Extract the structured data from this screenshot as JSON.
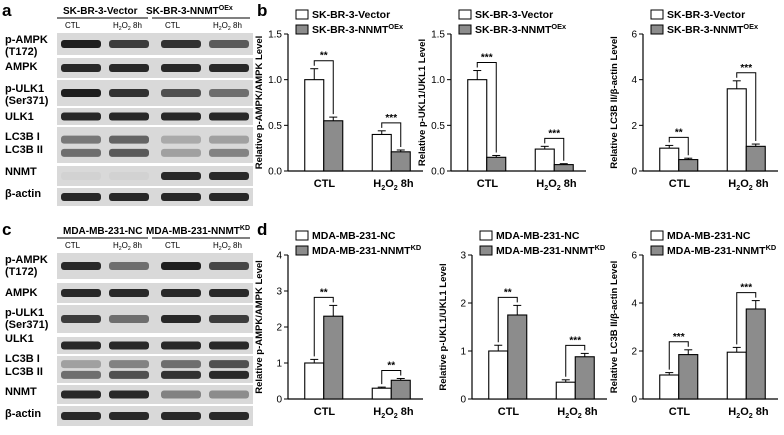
{
  "panels": {
    "a": "a",
    "b": "b",
    "c": "c",
    "d": "d"
  },
  "blots": [
    {
      "id": "a",
      "group_labels": [
        "SK-BR-3-Vector",
        "SK-BR-3-NNMT"
      ],
      "group_sup": [
        "",
        "OEx"
      ],
      "lane_labels": [
        "CTL",
        "H2O2 8h",
        "CTL",
        "H2O2 8h"
      ],
      "rows": [
        "p-AMPK",
        "(T172)",
        "AMPK",
        "p-ULK1",
        "(Ser371)",
        "ULK1",
        "LC3B I",
        "LC3B II",
        "NNMT",
        "β-actin"
      ],
      "band_intensity": [
        [
          0.95,
          0.8,
          0.85,
          0.65
        ],
        [
          0.9,
          0.9,
          0.9,
          0.9
        ],
        [
          0.95,
          0.85,
          0.7,
          0.55
        ],
        [
          0.9,
          0.9,
          0.9,
          0.9
        ],
        [
          0.5,
          0.6,
          0.25,
          0.3
        ],
        [
          0.55,
          0.65,
          0.3,
          0.45
        ],
        [
          0.05,
          0.05,
          0.9,
          0.9
        ],
        [
          0.9,
          0.9,
          0.9,
          0.9
        ]
      ]
    },
    {
      "id": "c",
      "group_labels": [
        "MDA-MB-231-NC",
        "MDA-MB-231-NNMT"
      ],
      "group_sup": [
        "",
        "KD"
      ],
      "lane_labels": [
        "CTL",
        "H2O2 8h",
        "CTL",
        "H2O2 8h"
      ],
      "rows": [
        "p-AMPK",
        "(T172)",
        "AMPK",
        "p-ULK1",
        "(Ser371)",
        "ULK1",
        "LC3B I",
        "LC3B II",
        "NNMT",
        "β-actin"
      ],
      "band_intensity": [
        [
          0.9,
          0.55,
          0.95,
          0.75
        ],
        [
          0.9,
          0.9,
          0.9,
          0.9
        ],
        [
          0.8,
          0.55,
          0.9,
          0.8
        ],
        [
          0.9,
          0.9,
          0.9,
          0.9
        ],
        [
          0.3,
          0.45,
          0.55,
          0.7
        ],
        [
          0.55,
          0.7,
          0.85,
          0.9
        ],
        [
          0.9,
          0.9,
          0.45,
          0.4
        ],
        [
          0.9,
          0.9,
          0.9,
          0.9
        ]
      ]
    }
  ],
  "chart_data": [
    {
      "type": "bar",
      "panel": "b",
      "categories": [
        "CTL",
        "H2O2 8h"
      ],
      "series": [
        {
          "name": "SK-BR-3-Vector",
          "sup": "",
          "values": [
            1.0,
            0.4
          ],
          "errors": [
            0.12,
            0.04
          ]
        },
        {
          "name": "SK-BR-3-NNMT",
          "sup": "OEx",
          "values": [
            0.55,
            0.21
          ],
          "errors": [
            0.04,
            0.02
          ]
        }
      ],
      "ylabel": "Relative p-AMPK/AMPK Level",
      "ylim": [
        0,
        1.5
      ],
      "yticks": [
        "0.0",
        "0.5",
        "1.0",
        "1.5"
      ],
      "significance": [
        {
          "category": 0,
          "label": "**"
        },
        {
          "category": 1,
          "label": "***"
        }
      ]
    },
    {
      "type": "bar",
      "panel": "b",
      "categories": [
        "CTL",
        "H2O2 8h"
      ],
      "series": [
        {
          "name": "SK-BR-3-Vector",
          "sup": "",
          "values": [
            1.0,
            0.24
          ],
          "errors": [
            0.1,
            0.03
          ]
        },
        {
          "name": "SK-BR-3-NNMT",
          "sup": "OEx",
          "values": [
            0.15,
            0.07
          ],
          "errors": [
            0.02,
            0.01
          ]
        }
      ],
      "ylabel": "Relative p-UKL1/UKL1 Level",
      "ylim": [
        0,
        1.5
      ],
      "yticks": [
        "0.0",
        "0.5",
        "1.0",
        "1.5"
      ],
      "significance": [
        {
          "category": 0,
          "label": "***"
        },
        {
          "category": 1,
          "label": "***"
        }
      ]
    },
    {
      "type": "bar",
      "panel": "b",
      "categories": [
        "CTL",
        "H2O2 8h"
      ],
      "series": [
        {
          "name": "SK-BR-3-Vector",
          "sup": "",
          "values": [
            1.0,
            3.6
          ],
          "errors": [
            0.12,
            0.35
          ]
        },
        {
          "name": "SK-BR-3-NNMT",
          "sup": "OEx",
          "values": [
            0.5,
            1.08
          ],
          "errors": [
            0.06,
            0.1
          ]
        }
      ],
      "ylabel": "Relative LC3B II/β-actin Level",
      "ylim": [
        0,
        6
      ],
      "yticks": [
        "0",
        "2",
        "4",
        "6"
      ],
      "significance": [
        {
          "category": 0,
          "label": "**"
        },
        {
          "category": 1,
          "label": "***"
        }
      ]
    },
    {
      "type": "bar",
      "panel": "d",
      "categories": [
        "CTL",
        "H2O2 8h"
      ],
      "series": [
        {
          "name": "MDA-MB-231-NC",
          "sup": "",
          "values": [
            1.0,
            0.3
          ],
          "errors": [
            0.1,
            0.03
          ]
        },
        {
          "name": "MDA-MB-231-NNMT",
          "sup": "KD",
          "values": [
            2.3,
            0.52
          ],
          "errors": [
            0.3,
            0.05
          ]
        }
      ],
      "ylabel": "Relative p-AMPK/AMPK Level",
      "ylim": [
        0,
        4
      ],
      "yticks": [
        "0",
        "1",
        "2",
        "3",
        "4"
      ],
      "significance": [
        {
          "category": 0,
          "label": "**"
        },
        {
          "category": 1,
          "label": "**"
        }
      ]
    },
    {
      "type": "bar",
      "panel": "d",
      "categories": [
        "CTL",
        "H2O2 8h"
      ],
      "series": [
        {
          "name": "MDA-MB-231-NC",
          "sup": "",
          "values": [
            1.0,
            0.35
          ],
          "errors": [
            0.12,
            0.05
          ]
        },
        {
          "name": "MDA-MB-231-NNMT",
          "sup": "KD",
          "values": [
            1.75,
            0.88
          ],
          "errors": [
            0.2,
            0.07
          ]
        }
      ],
      "ylabel": "Relative p-UKL1/UKL1 Level",
      "ylim": [
        0,
        3
      ],
      "yticks": [
        "0",
        "1",
        "2",
        "3"
      ],
      "significance": [
        {
          "category": 0,
          "label": "**"
        },
        {
          "category": 1,
          "label": "***"
        }
      ]
    },
    {
      "type": "bar",
      "panel": "d",
      "categories": [
        "CTL",
        "H2O2 8h"
      ],
      "series": [
        {
          "name": "MDA-MB-231-NC",
          "sup": "",
          "values": [
            1.0,
            1.95
          ],
          "errors": [
            0.1,
            0.2
          ]
        },
        {
          "name": "MDA-MB-231-NNMT",
          "sup": "KD",
          "values": [
            1.85,
            3.75
          ],
          "errors": [
            0.2,
            0.35
          ]
        }
      ],
      "ylabel": "Relative LC3B II/β-actin Level",
      "ylim": [
        0,
        6
      ],
      "yticks": [
        "0",
        "2",
        "4",
        "6"
      ],
      "significance": [
        {
          "category": 0,
          "label": "***"
        },
        {
          "category": 1,
          "label": "***"
        }
      ]
    }
  ],
  "colors": {
    "series_1": "#ffffff",
    "series_2": "#8c8c8c",
    "stroke": "#000000",
    "blot_bg": "#d9d9d9"
  }
}
